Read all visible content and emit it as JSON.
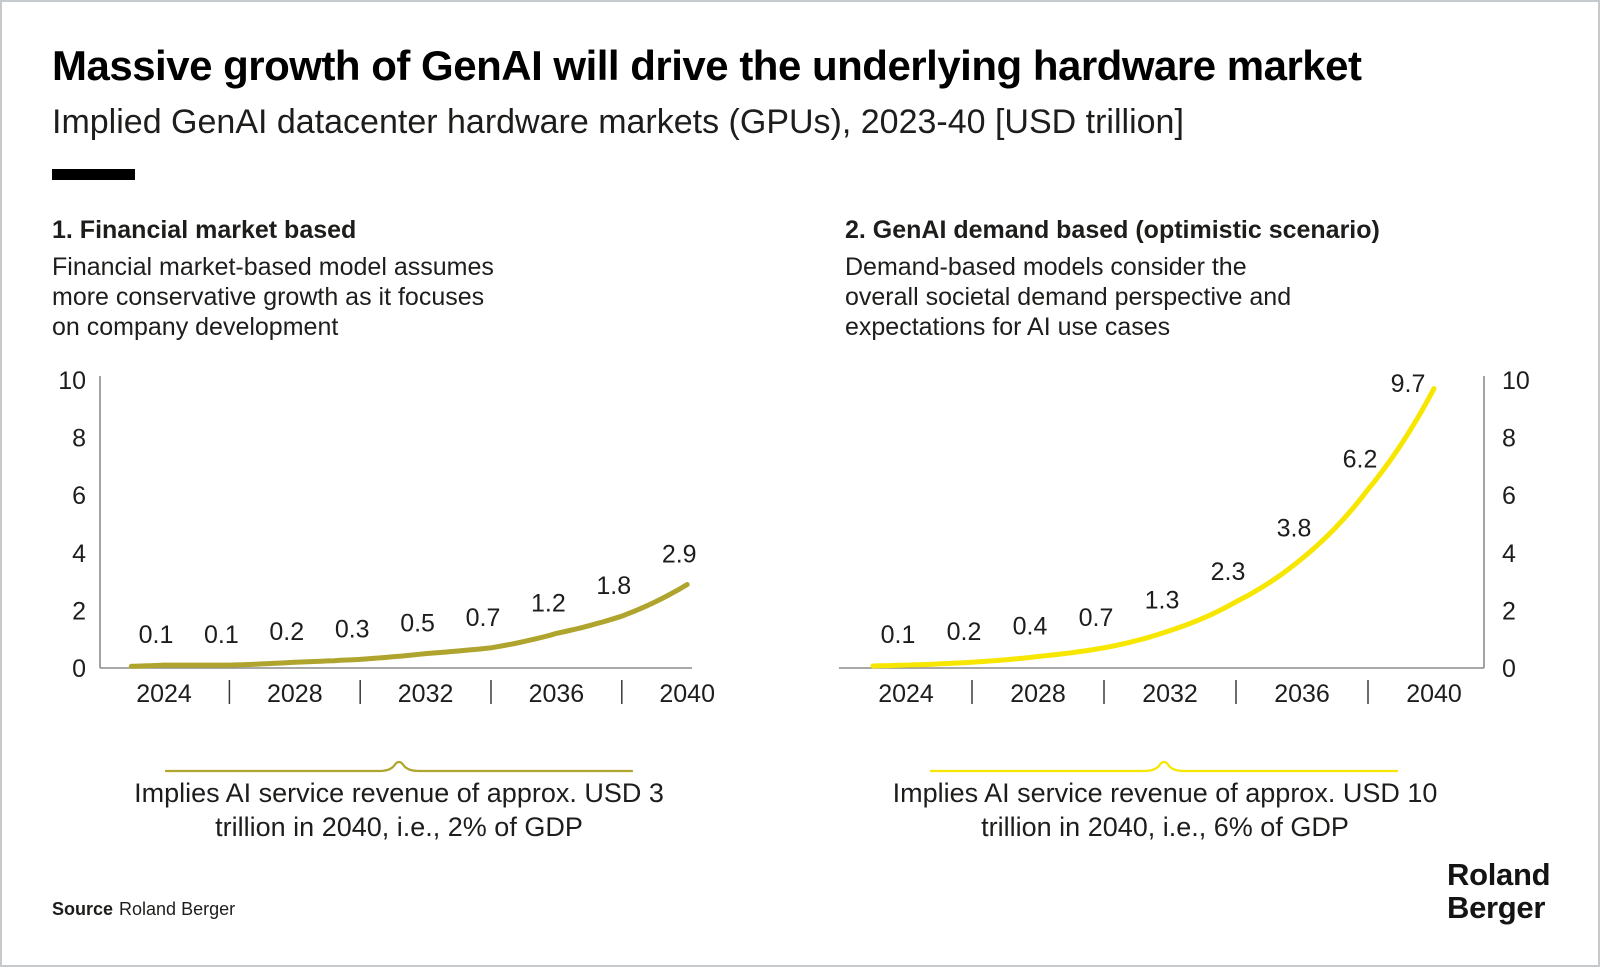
{
  "page": {
    "title": "Massive growth of GenAI will drive the underlying hardware market",
    "subtitle": "Implied GenAI datacenter hardware markets (GPUs), 2023-40 [USD trillion]"
  },
  "sections": [
    {
      "heading": "1. Financial market based",
      "body": "Financial market-based model assumes\nmore conservative growth as it focuses\non company development"
    },
    {
      "heading": "2. GenAI demand based (optimistic scenario)",
      "body": "Demand-based models consider the\noverall societal demand perspective and\nexpectations for AI use cases"
    }
  ],
  "chart_data": [
    {
      "type": "line",
      "title": "1. Financial market based",
      "x": [
        2024,
        2026,
        2028,
        2030,
        2032,
        2034,
        2036,
        2038,
        2040
      ],
      "values": [
        0.1,
        0.1,
        0.2,
        0.3,
        0.5,
        0.7,
        1.2,
        1.8,
        2.9
      ],
      "point_labels": [
        "0.1",
        "0.1",
        "0.2",
        "0.3",
        "0.5",
        "0.7",
        "1.2",
        "1.8",
        "2.9"
      ],
      "curve_start": {
        "x": 2023,
        "value": 0.06
      },
      "x_axis_label_years": [
        2024,
        2028,
        2032,
        2036,
        2040
      ],
      "x_axis_labels": [
        "2024",
        "2028",
        "2032",
        "2036",
        "2040"
      ],
      "x_separator_years": [
        2026,
        2030,
        2034,
        2038
      ],
      "y_ticks": [
        0,
        2,
        4,
        6,
        8,
        10
      ],
      "ylim": [
        0,
        10
      ],
      "xlim": [
        2023,
        2040
      ],
      "y_axis_side": "left",
      "grid": false,
      "legend": "none",
      "line_color": "#AFA42D",
      "annotation": "Implies AI service revenue of approx. USD 3\ntrillion in 2040, i.e., 2% of GDP"
    },
    {
      "type": "line",
      "title": "2. GenAI demand based (optimistic scenario)",
      "x": [
        2024,
        2026,
        2028,
        2030,
        2032,
        2034,
        2036,
        2038,
        2040
      ],
      "values": [
        0.1,
        0.2,
        0.4,
        0.7,
        1.3,
        2.3,
        3.8,
        6.2,
        9.7
      ],
      "point_labels": [
        "0.1",
        "0.2",
        "0.4",
        "0.7",
        "1.3",
        "2.3",
        "3.8",
        "6.2",
        "9.7"
      ],
      "curve_start": {
        "x": 2023,
        "value": 0.07
      },
      "x_axis_label_years": [
        2024,
        2028,
        2032,
        2036,
        2040
      ],
      "x_axis_labels": [
        "2024",
        "2028",
        "2032",
        "2036",
        "2040"
      ],
      "x_separator_years": [
        2026,
        2030,
        2034,
        2038
      ],
      "y_ticks": [
        0,
        2,
        4,
        6,
        8,
        10
      ],
      "ylim": [
        0,
        10
      ],
      "xlim": [
        2023,
        2040
      ],
      "y_axis_side": "right",
      "grid": false,
      "legend": "none",
      "line_color": "#F7E600",
      "annotation": "Implies AI service revenue of approx. USD 10\ntrillion in 2040, i.e., 6% of GDP"
    }
  ],
  "source": {
    "label": "Source",
    "value": "Roland Berger"
  },
  "logo": {
    "line1": "Roland",
    "line2": "Berger"
  },
  "colors": {
    "axis": "#8c8c8c",
    "tick_separator": "#3a3a3a",
    "text": "#1d1d1b"
  }
}
